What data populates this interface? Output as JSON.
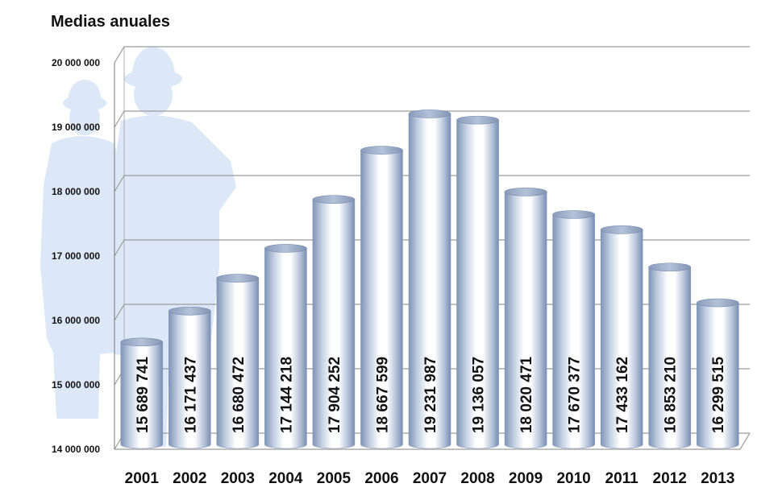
{
  "chart_data": {
    "type": "bar",
    "title": "Medias anuales",
    "xlabel": "",
    "ylabel": "",
    "categories": [
      "2001",
      "2002",
      "2003",
      "2004",
      "2005",
      "2006",
      "2007",
      "2008",
      "2009",
      "2010",
      "2011",
      "2012",
      "2013"
    ],
    "values": [
      15689741,
      16171437,
      16680472,
      17144218,
      17904252,
      18667599,
      19231987,
      19136057,
      18020471,
      17670377,
      17433162,
      16853210,
      16299515
    ],
    "value_labels": [
      "15 689 741",
      "16 171 437",
      "16 680 472",
      "17 144 218",
      "17 904 252",
      "18 667 599",
      "19 231 987",
      "19 136 057",
      "18 020 471",
      "17 670 377",
      "17 433 162",
      "16 853 210",
      "16 299 515"
    ],
    "ylim": [
      14000000,
      20000000
    ],
    "yticks": [
      14000000,
      15000000,
      16000000,
      17000000,
      18000000,
      19000000,
      20000000
    ],
    "ytick_labels": [
      "14 000 000",
      "15 000 000",
      "16 000 000",
      "17 000 000",
      "18 000 000",
      "19 000 000",
      "20 000 000"
    ],
    "grid": true,
    "legend": "none",
    "bar_style": "3d-cylinder",
    "colors": {
      "bar_dark": "#8fa2c2",
      "bar_light": "#ffffff",
      "grid": "#999999",
      "silhouette": "#dce8f8"
    },
    "background_image": "worker-silhouettes"
  }
}
